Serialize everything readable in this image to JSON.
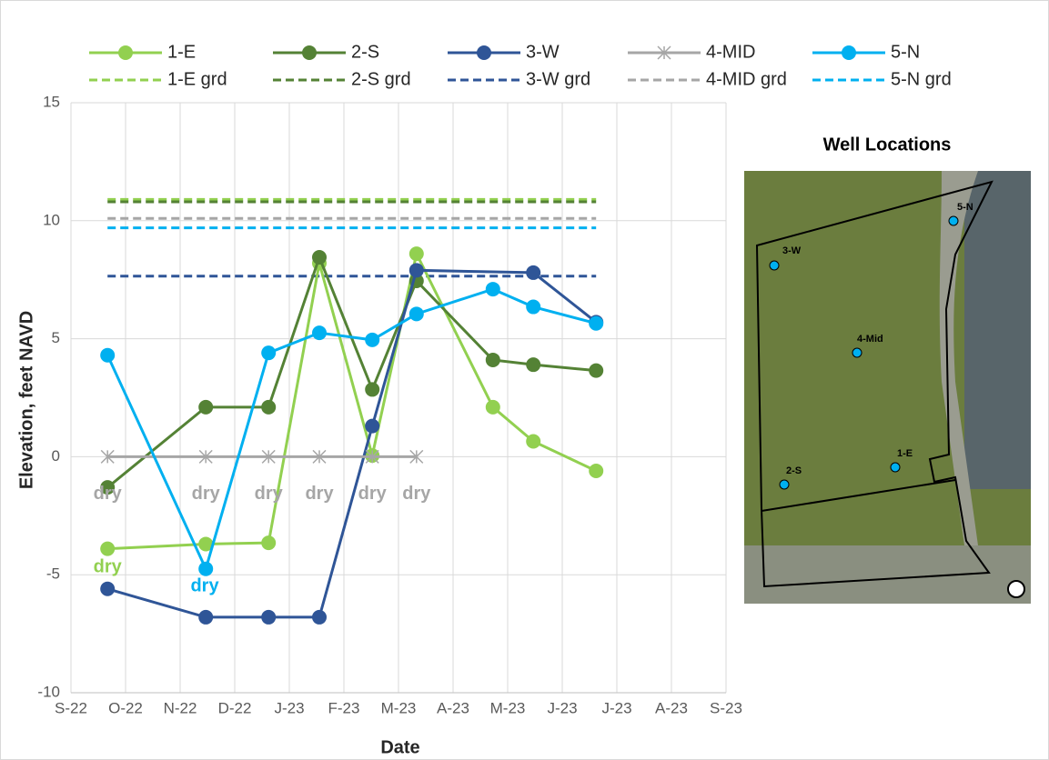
{
  "chart_data": {
    "type": "line",
    "x_label": "Date",
    "y_label": "Elevation, feet NAVD",
    "xlim": [
      0,
      12
    ],
    "xticks": [
      {
        "value": 0,
        "label": "S-22"
      },
      {
        "value": 1,
        "label": "O-22"
      },
      {
        "value": 2,
        "label": "N-22"
      },
      {
        "value": 3,
        "label": "D-22"
      },
      {
        "value": 4,
        "label": "J-23"
      },
      {
        "value": 5,
        "label": "F-23"
      },
      {
        "value": 6,
        "label": "M-23"
      },
      {
        "value": 7,
        "label": "A-23"
      },
      {
        "value": 8,
        "label": "M-23"
      },
      {
        "value": 9,
        "label": "J-23"
      },
      {
        "value": 10,
        "label": "J-23"
      },
      {
        "value": 11,
        "label": "A-23"
      },
      {
        "value": 12,
        "label": "S-23"
      }
    ],
    "ylim": [
      -10,
      15
    ],
    "yticks": [
      -10,
      -5,
      0,
      5,
      10,
      15
    ],
    "grid": true,
    "series": [
      {
        "name": "1-E",
        "color": "#92d050",
        "marker": "circle",
        "x": [
          0.67,
          2.47,
          3.62,
          4.55,
          5.52,
          6.33,
          7.73,
          8.47,
          9.62
        ],
        "values": [
          -3.9,
          -3.7,
          -3.65,
          8.2,
          0.05,
          8.6,
          2.1,
          0.65,
          -0.6
        ]
      },
      {
        "name": "2-S",
        "color": "#548235",
        "marker": "circle",
        "x": [
          0.67,
          2.47,
          3.62,
          4.55,
          5.52,
          6.33,
          7.73,
          8.47,
          9.62
        ],
        "values": [
          -1.3,
          2.1,
          2.1,
          8.45,
          2.85,
          7.45,
          4.1,
          3.9,
          3.65
        ]
      },
      {
        "name": "3-W",
        "color": "#2f5597",
        "marker": "circle",
        "x": [
          0.67,
          2.47,
          3.62,
          4.55,
          5.52,
          6.33,
          8.47,
          9.62
        ],
        "values": [
          -5.6,
          -6.8,
          -6.8,
          -6.8,
          1.3,
          7.9,
          7.8,
          5.7
        ]
      },
      {
        "name": "4-MID",
        "color": "#a6a6a6",
        "marker": "star",
        "x": [
          0.67,
          2.47,
          3.62,
          4.55,
          5.52,
          6.33
        ],
        "values": [
          0,
          0,
          0,
          0,
          0,
          0
        ]
      },
      {
        "name": "5-N",
        "color": "#00b0f0",
        "marker": "circle",
        "x": [
          0.67,
          2.47,
          3.62,
          4.55,
          5.52,
          6.33,
          7.73,
          8.47,
          9.62
        ],
        "values": [
          4.3,
          -4.75,
          4.4,
          5.25,
          4.95,
          6.05,
          7.1,
          6.35,
          5.65
        ]
      },
      {
        "name": "1-E grd",
        "color": "#92d050",
        "dashed": true,
        "x": [
          0.67,
          9.62
        ],
        "values": [
          10.9,
          10.9
        ]
      },
      {
        "name": "2-S grd",
        "color": "#548235",
        "dashed": true,
        "x": [
          0.67,
          9.62
        ],
        "values": [
          10.8,
          10.8
        ]
      },
      {
        "name": "3-W grd",
        "color": "#2f5597",
        "dashed": true,
        "x": [
          0.67,
          9.62
        ],
        "values": [
          7.65,
          7.65
        ]
      },
      {
        "name": "4-MID grd",
        "color": "#a6a6a6",
        "dashed": true,
        "x": [
          0.67,
          9.62
        ],
        "values": [
          10.1,
          10.1
        ]
      },
      {
        "name": "5-N grd",
        "color": "#00b0f0",
        "dashed": true,
        "x": [
          0.67,
          9.62
        ],
        "values": [
          9.7,
          9.7
        ]
      }
    ],
    "annotations": [
      {
        "text": "dry",
        "color": "#a6a6a6",
        "x": 0.67,
        "y": -1.6
      },
      {
        "text": "dry",
        "color": "#a6a6a6",
        "x": 2.47,
        "y": -1.6
      },
      {
        "text": "dry",
        "color": "#a6a6a6",
        "x": 3.62,
        "y": -1.6
      },
      {
        "text": "dry",
        "color": "#a6a6a6",
        "x": 4.55,
        "y": -1.6
      },
      {
        "text": "dry",
        "color": "#a6a6a6",
        "x": 5.52,
        "y": -1.6
      },
      {
        "text": "dry",
        "color": "#a6a6a6",
        "x": 6.33,
        "y": -1.6
      },
      {
        "text": "dry",
        "color": "#92d050",
        "x": 0.67,
        "y": -4.7
      },
      {
        "text": "dry",
        "color": "#00b0f0",
        "x": 2.45,
        "y": -5.5
      }
    ]
  },
  "map": {
    "title": "Well Locations",
    "labels": [
      "3-W",
      "5-N",
      "4-Mid",
      "1-E",
      "2-S"
    ]
  }
}
